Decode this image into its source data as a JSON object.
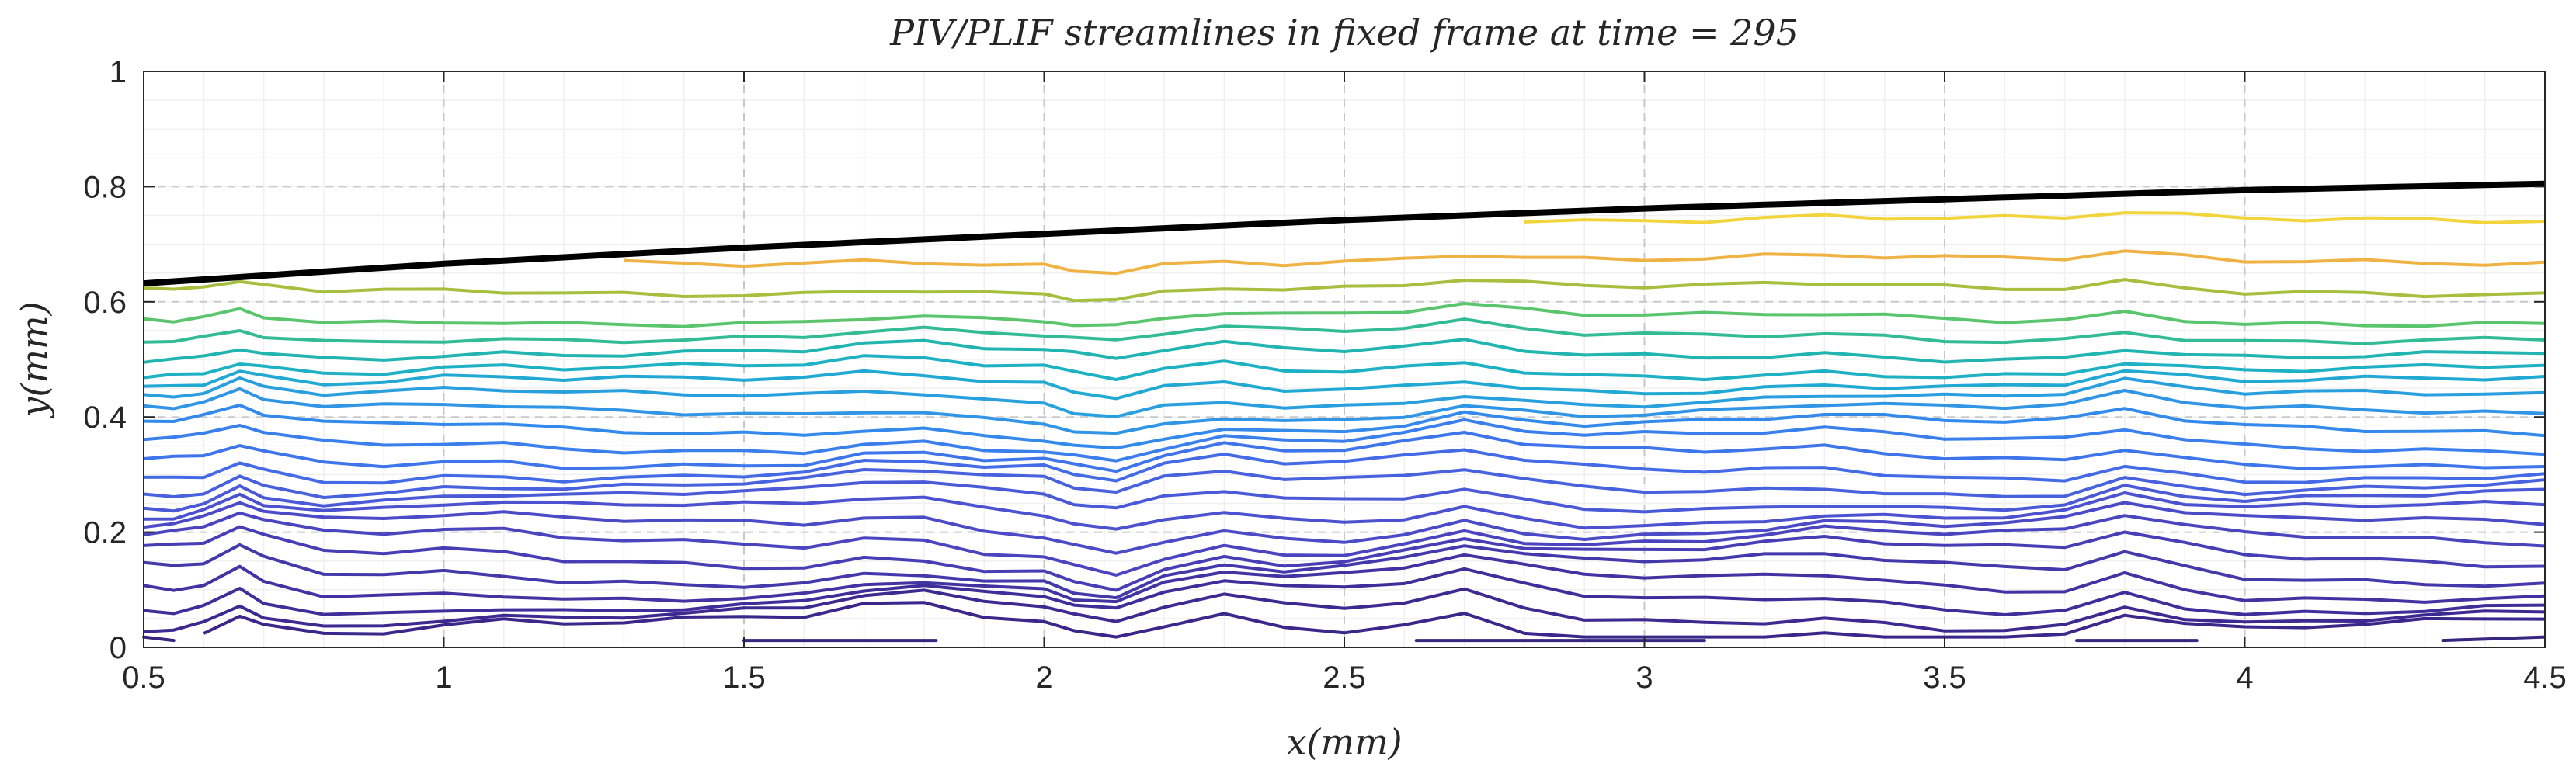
{
  "chart_data": {
    "type": "line",
    "title": "PIV/PLIF streamlines in fixed frame at time = 295",
    "xlabel": "x(mm)",
    "ylabel": "y(mm)",
    "xlim": [
      0.5,
      4.5
    ],
    "ylim": [
      0,
      1
    ],
    "x_ticks": [
      0.5,
      1,
      1.5,
      2,
      2.5,
      3,
      3.5,
      4,
      4.5
    ],
    "x_tick_labels": [
      "0.5",
      "1",
      "1.5",
      "2",
      "2.5",
      "3",
      "3.5",
      "4",
      "4.5"
    ],
    "y_ticks": [
      0,
      0.2,
      0.4,
      0.6,
      0.8,
      1
    ],
    "y_tick_labels": [
      "0",
      "0.2",
      "0.4",
      "0.6",
      "0.8",
      "1"
    ],
    "grid": true,
    "x_samples": [
      0.5,
      0.55,
      0.6,
      0.66,
      0.7,
      0.8,
      0.9,
      1.0,
      1.1,
      1.2,
      1.3,
      1.4,
      1.5,
      1.6,
      1.7,
      1.8,
      1.9,
      2.0,
      2.05,
      2.12,
      2.2,
      2.3,
      2.4,
      2.5,
      2.6,
      2.7,
      2.8,
      2.9,
      3.0,
      3.1,
      3.2,
      3.3,
      3.4,
      3.5,
      3.6,
      3.7,
      3.8,
      3.9,
      4.0,
      4.1,
      4.2,
      4.3,
      4.4,
      4.5
    ],
    "interface": {
      "name": "interface",
      "color": "#000000",
      "x": [
        0.5,
        1.0,
        1.5,
        2.0,
        2.5,
        3.0,
        3.5,
        4.0,
        4.5
      ],
      "y": [
        0.632,
        0.666,
        0.694,
        0.718,
        0.742,
        0.762,
        0.778,
        0.794,
        0.805
      ]
    },
    "streamlines": [
      {
        "level": 0.74,
        "color": "#f2d43c",
        "x_start": 2.8,
        "x_end": 4.5
      },
      {
        "level": 0.67,
        "color": "#efb345",
        "x_start": 1.25,
        "x_end": 4.5
      },
      {
        "level": 0.62,
        "color": "#a7be3e",
        "x_start": 0.5,
        "x_end": 4.5
      },
      {
        "level": 0.57,
        "color": "#5bc56d",
        "x_start": 0.5,
        "x_end": 4.5
      },
      {
        "level": 0.54,
        "color": "#33bb95",
        "x_start": 0.5,
        "x_end": 4.5
      },
      {
        "level": 0.51,
        "color": "#22b4b0",
        "x_start": 0.5,
        "x_end": 4.5
      },
      {
        "level": 0.48,
        "color": "#1eb0c3",
        "x_start": 0.5,
        "x_end": 4.5
      },
      {
        "level": 0.455,
        "color": "#22a9d3",
        "x_start": 0.5,
        "x_end": 4.5
      },
      {
        "level": 0.43,
        "color": "#2a9fde",
        "x_start": 0.5,
        "x_end": 4.5
      },
      {
        "level": 0.405,
        "color": "#3195e6",
        "x_start": 0.5,
        "x_end": 4.5
      },
      {
        "level": 0.38,
        "color": "#348aeb",
        "x_start": 0.5,
        "x_end": 4.5
      },
      {
        "level": 0.355,
        "color": "#3a7fec",
        "x_start": 0.5,
        "x_end": 4.5
      },
      {
        "level": 0.33,
        "color": "#3f75ea",
        "x_start": 0.5,
        "x_end": 4.5
      },
      {
        "level": 0.305,
        "color": "#446be5",
        "x_start": 0.5,
        "x_end": 4.5
      },
      {
        "level": 0.28,
        "color": "#4862de",
        "x_start": 0.5,
        "x_end": 4.5
      },
      {
        "level": 0.255,
        "color": "#4a5ad7",
        "x_start": 0.5,
        "x_end": 4.5
      },
      {
        "level": 0.23,
        "color": "#4c52cf",
        "x_start": 0.5,
        "x_end": 4.5
      },
      {
        "level": 0.205,
        "color": "#4c4bc7",
        "x_start": 0.5,
        "x_end": 4.5
      },
      {
        "level": 0.18,
        "color": "#4a44be",
        "x_start": 0.5,
        "x_end": 4.5
      },
      {
        "level": 0.155,
        "color": "#473eb5",
        "x_start": 0.5,
        "x_end": 4.5
      },
      {
        "level": 0.13,
        "color": "#4438ab",
        "x_start": 0.5,
        "x_end": 4.5
      },
      {
        "level": 0.105,
        "color": "#4233a2",
        "x_start": 0.5,
        "x_end": 4.5
      },
      {
        "level": 0.08,
        "color": "#3f2e99",
        "x_start": 0.5,
        "x_end": 4.5
      },
      {
        "level": 0.055,
        "color": "#3c2a90",
        "x_start": 0.5,
        "x_end": 4.5
      },
      {
        "level": 0.03,
        "color": "#3a278a",
        "x_start": 0.6,
        "x_end": 4.5
      }
    ],
    "bottom_fragments": [
      {
        "color": "#37257f",
        "x": [
          0.5,
          0.55
        ],
        "y": [
          0.018,
          0.012
        ]
      },
      {
        "color": "#37257f",
        "x": [
          1.5,
          1.82
        ],
        "y": [
          0.012,
          0.012
        ]
      },
      {
        "color": "#37257f",
        "x": [
          2.62,
          3.1
        ],
        "y": [
          0.012,
          0.012
        ]
      },
      {
        "color": "#37257f",
        "x": [
          3.72,
          3.92
        ],
        "y": [
          0.012,
          0.012
        ]
      },
      {
        "color": "#37257f",
        "x": [
          4.33,
          4.5
        ],
        "y": [
          0.012,
          0.018
        ]
      }
    ]
  }
}
